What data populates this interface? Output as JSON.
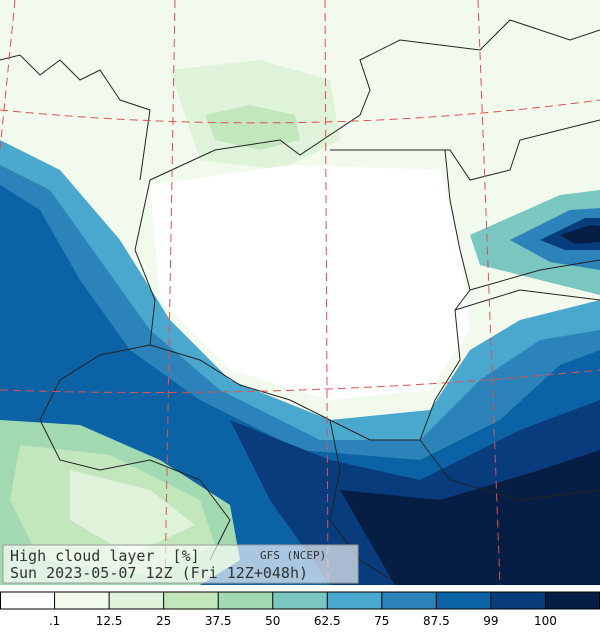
{
  "title": "High cloud layer  [%]",
  "source": "GFS (NCEP)",
  "valid": "Sun 2023-05-07 12Z (Fri 12Z+048h)",
  "colorbar": {
    "ticks": [
      {
        "value": 0.1,
        "label": ".1"
      },
      12.5,
      25,
      37.5,
      50,
      62.5,
      75,
      87.5,
      99,
      100
    ],
    "colors": [
      "#ffffff",
      "#f2faee",
      "#dff2da",
      "#c3e7bd",
      "#a3d9b1",
      "#7ac7c2",
      "#4aa8cf",
      "#2b83ba",
      "#0b63a6",
      "#083c7c",
      "#061e44"
    ]
  }
}
